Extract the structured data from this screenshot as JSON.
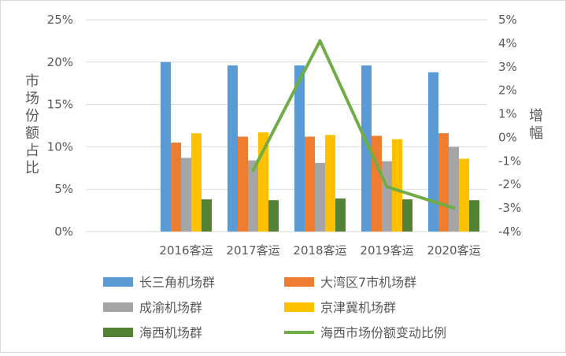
{
  "chart_data": {
    "type": "bar",
    "categories": [
      "2016客运",
      "2017客运",
      "2018客运",
      "2019客运",
      "2020客运"
    ],
    "series": [
      {
        "name": "长三角机场群",
        "values": [
          20.0,
          19.6,
          19.6,
          19.6,
          18.8
        ],
        "color": "#5b9bd5"
      },
      {
        "name": "大湾区7市机场群",
        "values": [
          10.5,
          11.2,
          11.2,
          11.3,
          11.6
        ],
        "color": "#ed7d31"
      },
      {
        "name": "成渝机场群",
        "values": [
          8.7,
          8.4,
          8.1,
          8.3,
          10.0
        ],
        "color": "#a5a5a5"
      },
      {
        "name": "京津冀机场群",
        "values": [
          11.6,
          11.7,
          11.4,
          10.9,
          8.6
        ],
        "color": "#ffc000"
      },
      {
        "name": "海西机场群",
        "values": [
          3.8,
          3.7,
          3.9,
          3.8,
          3.7
        ],
        "color": "#548235"
      }
    ],
    "line_series": {
      "name": "海西市场份额变动比例",
      "values": [
        null,
        -1.4,
        4.1,
        -2.1,
        -3.0
      ],
      "color": "#70ad47",
      "axis": "secondary"
    },
    "ylabel": "市场份额占比",
    "y2label": "增幅",
    "ylim": [
      0,
      25
    ],
    "y2lim": [
      -4,
      5
    ],
    "yticks": [
      "0%",
      "5%",
      "10%",
      "15%",
      "20%",
      "25%"
    ],
    "y2ticks": [
      "-4%",
      "-3%",
      "-2%",
      "-1%",
      "0%",
      "1%",
      "2%",
      "3%",
      "4%",
      "5%"
    ],
    "grid": true,
    "legend_position": "bottom"
  }
}
